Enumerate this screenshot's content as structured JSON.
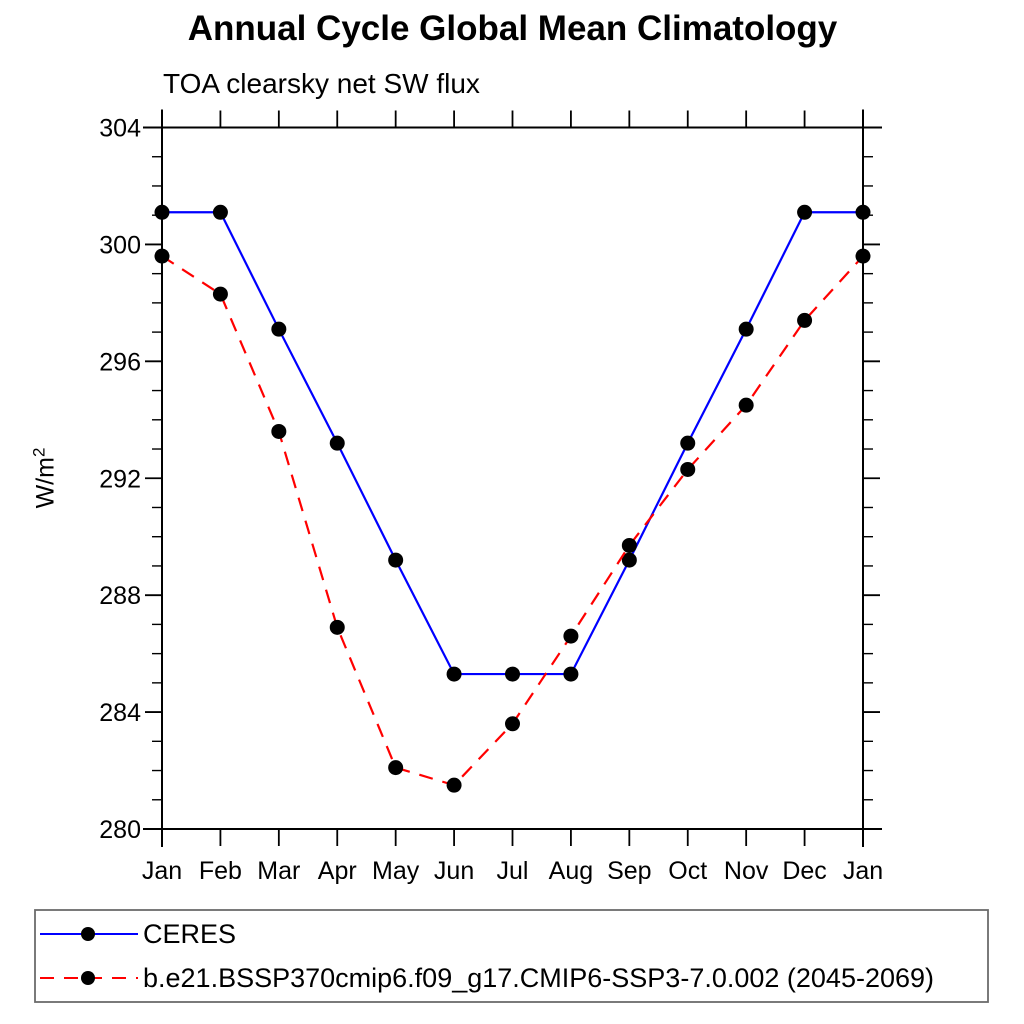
{
  "chart_data": {
    "type": "line",
    "title": "Annual Cycle Global Mean Climatology",
    "subtitle": "TOA clearsky net SW flux",
    "ylabel": {
      "base": "W/m",
      "sup": "2"
    },
    "categories": [
      "Jan",
      "Feb",
      "Mar",
      "Apr",
      "May",
      "Jun",
      "Jul",
      "Aug",
      "Sep",
      "Oct",
      "Nov",
      "Dec",
      "Jan"
    ],
    "ylim": [
      280,
      304
    ],
    "yticks_major": [
      280,
      284,
      288,
      292,
      296,
      300,
      304
    ],
    "ytick_minor_interval": 1,
    "grid": false,
    "legend_position": "bottom-left",
    "marker_color": "#000000",
    "series": [
      {
        "name": "CERES",
        "line_color": "#0000ff",
        "line_style": "solid",
        "values": [
          301.1,
          301.1,
          297.1,
          293.2,
          289.2,
          285.3,
          285.3,
          285.3,
          289.2,
          293.2,
          297.1,
          301.1,
          301.1
        ]
      },
      {
        "name": "b.e21.BSSP370cmip6.f09_g17.CMIP6-SSP3-7.0.002 (2045-2069)",
        "line_color": "#ff0000",
        "line_style": "dashed",
        "values": [
          299.6,
          298.3,
          293.6,
          286.9,
          282.1,
          281.5,
          283.6,
          286.6,
          289.7,
          292.3,
          294.5,
          297.4,
          299.6
        ]
      }
    ]
  }
}
